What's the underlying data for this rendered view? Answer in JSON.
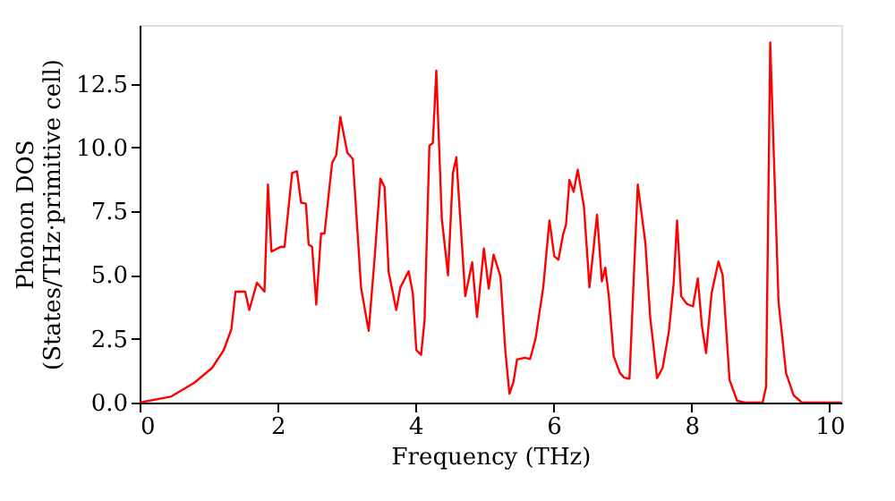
{
  "chart_data": {
    "type": "line",
    "xlabel": "Frequency (THz)",
    "ylabel": "Phonon DOS\n(States/THz·primitive cell)",
    "xlim": [
      0,
      10.17
    ],
    "ylim": [
      0,
      14.8
    ],
    "xticks": [
      0,
      2,
      4,
      6,
      8,
      10
    ],
    "yticks": [
      {
        "value": 0,
        "label": "0.0"
      },
      {
        "value": 2.5,
        "label": "2.5"
      },
      {
        "value": 5,
        "label": "5.0"
      },
      {
        "value": 7.5,
        "label": "7.5"
      },
      {
        "value": 10,
        "label": "10.0"
      },
      {
        "value": 12.5,
        "label": "12.5"
      }
    ],
    "grid": false,
    "marker": "none",
    "line_style": "solid",
    "series": [
      {
        "color": "#ff0000",
        "x": [
          0,
          0.45,
          0.79,
          1.05,
          1.22,
          1.33,
          1.39,
          1.53,
          1.59,
          1.7,
          1.81,
          1.86,
          1.91,
          2.04,
          2.1,
          2.21,
          2.28,
          2.34,
          2.41,
          2.45,
          2.5,
          2.56,
          2.63,
          2.68,
          2.79,
          2.85,
          2.91,
          3.01,
          3.09,
          3.21,
          3.32,
          3.41,
          3.49,
          3.55,
          3.61,
          3.72,
          3.78,
          3.9,
          3.96,
          4.01,
          4.08,
          4.13,
          4.2,
          4.25,
          4.3,
          4.38,
          4.47,
          4.54,
          4.59,
          4.72,
          4.82,
          4.89,
          4.99,
          5.06,
          5.13,
          5.23,
          5.3,
          5.36,
          5.42,
          5.47,
          5.58,
          5.66,
          5.74,
          5.85,
          5.94,
          6.01,
          6.07,
          6.14,
          6.18,
          6.23,
          6.29,
          6.35,
          6.44,
          6.52,
          6.63,
          6.7,
          6.75,
          6.8,
          6.87,
          6.96,
          7.02,
          7.1,
          7.22,
          7.33,
          7.4,
          7.5,
          7.58,
          7.67,
          7.74,
          7.79,
          7.85,
          7.93,
          8.02,
          8.09,
          8.15,
          8.21,
          8.29,
          8.39,
          8.45,
          8.55,
          8.66,
          8.77,
          9.03,
          9.08,
          9.14,
          9.26,
          9.37,
          9.48,
          9.6,
          10.17
        ],
        "values": [
          0,
          0.23,
          0.77,
          1.36,
          2.06,
          2.88,
          4.35,
          4.35,
          3.63,
          4.7,
          4.35,
          8.55,
          5.92,
          6.1,
          6.1,
          9.0,
          9.07,
          7.84,
          7.8,
          6.2,
          6.1,
          3.84,
          6.63,
          6.63,
          9.4,
          9.7,
          11.2,
          9.8,
          9.55,
          4.5,
          2.81,
          5.8,
          8.78,
          8.45,
          5.1,
          3.63,
          4.52,
          5.15,
          4.28,
          2.06,
          1.87,
          3.23,
          10.07,
          10.18,
          13.01,
          7.21,
          4.99,
          8.97,
          9.62,
          4.17,
          5.5,
          3.35,
          6.04,
          4.47,
          5.8,
          4.94,
          2.06,
          0.35,
          0.82,
          1.69,
          1.76,
          1.71,
          2.53,
          4.52,
          7.14,
          5.74,
          5.6,
          6.62,
          6.97,
          8.73,
          8.26,
          9.13,
          7.68,
          4.52,
          7.37,
          4.75,
          5.29,
          4.17,
          1.83,
          1.17,
          0.98,
          0.94,
          8.55,
          6.27,
          3.35,
          0.96,
          1.36,
          2.76,
          4.66,
          7.14,
          4.17,
          3.87,
          3.77,
          4.87,
          3.0,
          1.94,
          4.29,
          5.53,
          5.0,
          0.89,
          0.07,
          0,
          0,
          0.63,
          14.12,
          3.96,
          1.15,
          0.28,
          0,
          0
        ]
      }
    ]
  }
}
